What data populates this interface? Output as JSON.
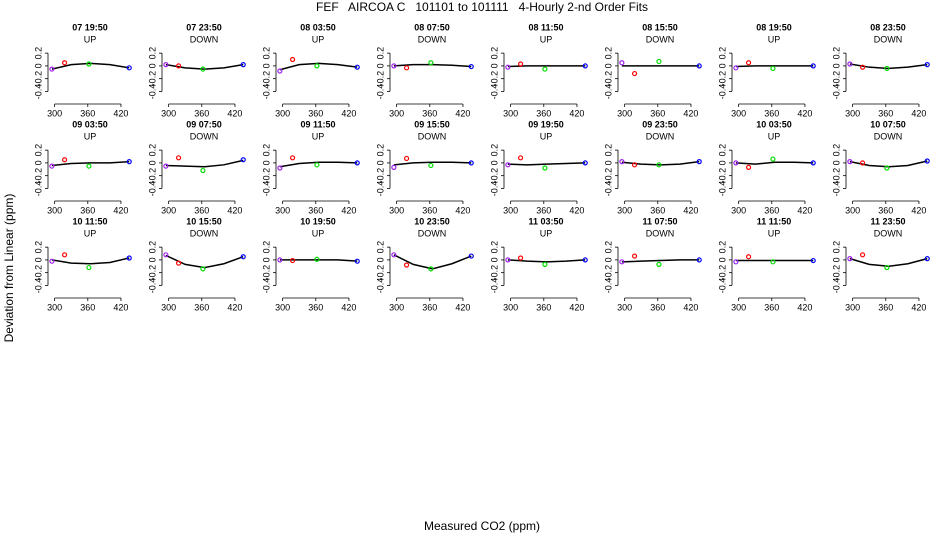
{
  "figure": {
    "title": "FEF   AIRCOA C   101101 to 101111   4-Hourly 2-nd Order Fits",
    "x_label": "Measured CO2 (ppm)",
    "y_label": "Deviation from Linear (ppm)"
  },
  "chart_data": [
    {
      "type": "scatter",
      "title": "07 19:50",
      "subtitle": "UP",
      "x": [
        295,
        318,
        362,
        435
      ],
      "values": [
        -0.05,
        0.05,
        0.03,
        -0.03
      ],
      "colors": [
        "#a020f0",
        "#ff0000",
        "#00dd00",
        "#0000ff"
      ],
      "fit": {
        "x": [
          295,
          330,
          365,
          400,
          435
        ],
        "values": [
          -0.05,
          0.02,
          0.04,
          0.02,
          -0.03
        ]
      },
      "xlim": [
        288,
        440
      ],
      "ylim": [
        -0.55,
        0.5
      ],
      "xticks": [
        300,
        360,
        420
      ],
      "yticks": [
        -0.4,
        -0.2,
        0,
        0.2
      ]
    },
    {
      "type": "scatter",
      "title": "07 23:50",
      "subtitle": "DOWN",
      "x": [
        295,
        318,
        362,
        435
      ],
      "values": [
        0.02,
        0.0,
        -0.05,
        0.02
      ],
      "colors": [
        "#a020f0",
        "#ff0000",
        "#00dd00",
        "#0000ff"
      ],
      "fit": {
        "x": [
          295,
          330,
          365,
          400,
          435
        ],
        "values": [
          0.02,
          -0.03,
          -0.05,
          -0.03,
          0.02
        ]
      },
      "xlim": [
        288,
        440
      ],
      "ylim": [
        -0.55,
        0.5
      ],
      "xticks": [
        300,
        360,
        420
      ],
      "yticks": [
        -0.4,
        -0.2,
        0,
        0.2
      ]
    },
    {
      "type": "scatter",
      "title": "08 03:50",
      "subtitle": "UP",
      "x": [
        295,
        318,
        362,
        435
      ],
      "values": [
        -0.08,
        0.1,
        0.0,
        -0.02
      ],
      "colors": [
        "#a020f0",
        "#ff0000",
        "#00dd00",
        "#0000ff"
      ],
      "fit": {
        "x": [
          295,
          330,
          365,
          400,
          435
        ],
        "values": [
          -0.06,
          0.02,
          0.04,
          0.02,
          -0.02
        ]
      },
      "xlim": [
        288,
        440
      ],
      "ylim": [
        -0.55,
        0.5
      ],
      "xticks": [
        300,
        360,
        420
      ],
      "yticks": [
        -0.4,
        -0.2,
        0,
        0.2
      ]
    },
    {
      "type": "scatter",
      "title": "08 07:50",
      "subtitle": "DOWN",
      "x": [
        295,
        318,
        362,
        435
      ],
      "values": [
        0.0,
        -0.03,
        0.05,
        -0.01
      ],
      "colors": [
        "#a020f0",
        "#ff0000",
        "#00dd00",
        "#0000ff"
      ],
      "fit": {
        "x": [
          295,
          330,
          365,
          400,
          435
        ],
        "values": [
          0,
          0.02,
          0.02,
          0.01,
          -0.01
        ]
      },
      "xlim": [
        288,
        440
      ],
      "ylim": [
        -0.55,
        0.5
      ],
      "xticks": [
        300,
        360,
        420
      ],
      "yticks": [
        -0.4,
        -0.2,
        0,
        0.2
      ]
    },
    {
      "type": "scatter",
      "title": "08 11:50",
      "subtitle": "UP",
      "x": [
        295,
        318,
        362,
        435
      ],
      "values": [
        -0.02,
        0.03,
        -0.05,
        0.0
      ],
      "colors": [
        "#a020f0",
        "#ff0000",
        "#00dd00",
        "#0000ff"
      ],
      "fit": {
        "x": [
          295,
          330,
          365,
          400,
          435
        ],
        "values": [
          -0.01,
          0,
          0,
          0,
          0
        ]
      },
      "xlim": [
        288,
        440
      ],
      "ylim": [
        -0.55,
        0.5
      ],
      "xticks": [
        300,
        360,
        420
      ],
      "yticks": [
        -0.4,
        -0.2,
        0,
        0.2
      ]
    },
    {
      "type": "scatter",
      "title": "08 15:50",
      "subtitle": "DOWN",
      "x": [
        295,
        318,
        362,
        435
      ],
      "values": [
        0.05,
        -0.12,
        0.07,
        0.0
      ],
      "colors": [
        "#a020f0",
        "#ff0000",
        "#00dd00",
        "#0000ff"
      ],
      "fit": {
        "x": [
          295,
          330,
          365,
          400,
          435
        ],
        "values": [
          0,
          0,
          0,
          0,
          0
        ]
      },
      "xlim": [
        288,
        440
      ],
      "ylim": [
        -0.55,
        0.5
      ],
      "xticks": [
        300,
        360,
        420
      ],
      "yticks": [
        -0.4,
        -0.2,
        0,
        0.2
      ]
    },
    {
      "type": "scatter",
      "title": "08 19:50",
      "subtitle": "UP",
      "x": [
        295,
        318,
        362,
        435
      ],
      "values": [
        -0.03,
        0.05,
        -0.04,
        0.0
      ],
      "colors": [
        "#a020f0",
        "#ff0000",
        "#00dd00",
        "#0000ff"
      ],
      "fit": {
        "x": [
          295,
          330,
          365,
          400,
          435
        ],
        "values": [
          -0.01,
          0,
          0,
          0,
          0
        ]
      },
      "xlim": [
        288,
        440
      ],
      "ylim": [
        -0.55,
        0.5
      ],
      "xticks": [
        300,
        360,
        420
      ],
      "yticks": [
        -0.4,
        -0.2,
        0,
        0.2
      ]
    },
    {
      "type": "scatter",
      "title": "08 23:50",
      "subtitle": "DOWN",
      "x": [
        295,
        318,
        362,
        435
      ],
      "values": [
        0.03,
        -0.02,
        -0.04,
        0.02
      ],
      "colors": [
        "#a020f0",
        "#ff0000",
        "#00dd00",
        "#0000ff"
      ],
      "fit": {
        "x": [
          295,
          330,
          365,
          400,
          435
        ],
        "values": [
          0.03,
          -0.02,
          -0.04,
          -0.02,
          0.02
        ]
      },
      "xlim": [
        288,
        440
      ],
      "ylim": [
        -0.55,
        0.5
      ],
      "xticks": [
        300,
        360,
        420
      ],
      "yticks": [
        -0.4,
        -0.2,
        0,
        0.2
      ]
    },
    {
      "type": "scatter",
      "title": "09 03:50",
      "subtitle": "UP",
      "x": [
        295,
        318,
        362,
        435
      ],
      "values": [
        -0.05,
        0.05,
        -0.05,
        0.02
      ],
      "colors": [
        "#a020f0",
        "#ff0000",
        "#00dd00",
        "#0000ff"
      ],
      "fit": {
        "x": [
          295,
          330,
          365,
          400,
          435
        ],
        "values": [
          -0.04,
          -0.01,
          0,
          0,
          0.02
        ]
      },
      "xlim": [
        288,
        440
      ],
      "ylim": [
        -0.55,
        0.5
      ],
      "xticks": [
        300,
        360,
        420
      ],
      "yticks": [
        -0.4,
        -0.2,
        0,
        0.2
      ]
    },
    {
      "type": "scatter",
      "title": "09 07:50",
      "subtitle": "DOWN",
      "x": [
        295,
        318,
        362,
        435
      ],
      "values": [
        -0.05,
        0.08,
        -0.12,
        0.05
      ],
      "colors": [
        "#a020f0",
        "#ff0000",
        "#00dd00",
        "#0000ff"
      ],
      "fit": {
        "x": [
          295,
          330,
          365,
          400,
          435
        ],
        "values": [
          -0.04,
          -0.05,
          -0.06,
          -0.03,
          0.04
        ]
      },
      "xlim": [
        288,
        440
      ],
      "ylim": [
        -0.55,
        0.5
      ],
      "xticks": [
        300,
        360,
        420
      ],
      "yticks": [
        -0.4,
        -0.2,
        0,
        0.2
      ]
    },
    {
      "type": "scatter",
      "title": "09 11:50",
      "subtitle": "UP",
      "x": [
        295,
        318,
        362,
        435
      ],
      "values": [
        -0.08,
        0.08,
        -0.03,
        0.0
      ],
      "colors": [
        "#a020f0",
        "#ff0000",
        "#00dd00",
        "#0000ff"
      ],
      "fit": {
        "x": [
          295,
          330,
          365,
          400,
          435
        ],
        "values": [
          -0.06,
          -0.01,
          0.01,
          0.01,
          0
        ]
      },
      "xlim": [
        288,
        440
      ],
      "ylim": [
        -0.55,
        0.5
      ],
      "xticks": [
        300,
        360,
        420
      ],
      "yticks": [
        -0.4,
        -0.2,
        0,
        0.2
      ]
    },
    {
      "type": "scatter",
      "title": "09 15:50",
      "subtitle": "DOWN",
      "x": [
        295,
        318,
        362,
        435
      ],
      "values": [
        -0.07,
        0.07,
        -0.04,
        0.0
      ],
      "colors": [
        "#a020f0",
        "#ff0000",
        "#00dd00",
        "#0000ff"
      ],
      "fit": {
        "x": [
          295,
          330,
          365,
          400,
          435
        ],
        "values": [
          -0.03,
          0,
          0.01,
          0.01,
          0
        ]
      },
      "xlim": [
        288,
        440
      ],
      "ylim": [
        -0.55,
        0.5
      ],
      "xticks": [
        300,
        360,
        420
      ],
      "yticks": [
        -0.4,
        -0.2,
        0,
        0.2
      ]
    },
    {
      "type": "scatter",
      "title": "09 19:50",
      "subtitle": "UP",
      "x": [
        295,
        318,
        362,
        435
      ],
      "values": [
        -0.03,
        0.08,
        -0.08,
        0.0
      ],
      "colors": [
        "#a020f0",
        "#ff0000",
        "#00dd00",
        "#0000ff"
      ],
      "fit": {
        "x": [
          295,
          330,
          365,
          400,
          435
        ],
        "values": [
          -0.02,
          -0.03,
          -0.02,
          -0.01,
          0
        ]
      },
      "xlim": [
        288,
        440
      ],
      "ylim": [
        -0.55,
        0.5
      ],
      "xticks": [
        300,
        360,
        420
      ],
      "yticks": [
        -0.4,
        -0.2,
        0,
        0.2
      ]
    },
    {
      "type": "scatter",
      "title": "09 23:50",
      "subtitle": "DOWN",
      "x": [
        295,
        318,
        362,
        435
      ],
      "values": [
        0.02,
        -0.03,
        -0.03,
        0.02
      ],
      "colors": [
        "#a020f0",
        "#ff0000",
        "#00dd00",
        "#0000ff"
      ],
      "fit": {
        "x": [
          295,
          330,
          365,
          400,
          435
        ],
        "values": [
          0.01,
          -0.02,
          -0.03,
          -0.02,
          0.02
        ]
      },
      "xlim": [
        288,
        440
      ],
      "ylim": [
        -0.55,
        0.5
      ],
      "xticks": [
        300,
        360,
        420
      ],
      "yticks": [
        -0.4,
        -0.2,
        0,
        0.2
      ]
    },
    {
      "type": "scatter",
      "title": "10 03:50",
      "subtitle": "UP",
      "x": [
        295,
        318,
        362,
        435
      ],
      "values": [
        0.0,
        -0.07,
        0.06,
        0.0
      ],
      "colors": [
        "#a020f0",
        "#ff0000",
        "#00dd00",
        "#0000ff"
      ],
      "fit": {
        "x": [
          295,
          330,
          365,
          400,
          435
        ],
        "values": [
          0,
          -0.02,
          0.01,
          0.01,
          0
        ]
      },
      "xlim": [
        288,
        440
      ],
      "ylim": [
        -0.55,
        0.5
      ],
      "xticks": [
        300,
        360,
        420
      ],
      "yticks": [
        -0.4,
        -0.2,
        0,
        0.2
      ]
    },
    {
      "type": "scatter",
      "title": "10 07:50",
      "subtitle": "DOWN",
      "x": [
        295,
        318,
        362,
        435
      ],
      "values": [
        0.02,
        0.0,
        -0.08,
        0.03
      ],
      "colors": [
        "#a020f0",
        "#ff0000",
        "#00dd00",
        "#0000ff"
      ],
      "fit": {
        "x": [
          295,
          330,
          365,
          400,
          435
        ],
        "values": [
          0.02,
          -0.04,
          -0.06,
          -0.04,
          0.03
        ]
      },
      "xlim": [
        288,
        440
      ],
      "ylim": [
        -0.55,
        0.5
      ],
      "xticks": [
        300,
        360,
        420
      ],
      "yticks": [
        -0.4,
        -0.2,
        0,
        0.2
      ]
    },
    {
      "type": "scatter",
      "title": "10 11:50",
      "subtitle": "UP",
      "x": [
        295,
        318,
        362,
        435
      ],
      "values": [
        -0.02,
        0.08,
        -0.12,
        0.03
      ],
      "colors": [
        "#a020f0",
        "#ff0000",
        "#00dd00",
        "#0000ff"
      ],
      "fit": {
        "x": [
          295,
          330,
          365,
          400,
          435
        ],
        "values": [
          0,
          -0.05,
          -0.06,
          -0.04,
          0.03
        ]
      },
      "xlim": [
        288,
        440
      ],
      "ylim": [
        -0.55,
        0.5
      ],
      "xticks": [
        300,
        360,
        420
      ],
      "yticks": [
        -0.4,
        -0.2,
        0,
        0.2
      ]
    },
    {
      "type": "scatter",
      "title": "10 15:50",
      "subtitle": "DOWN",
      "x": [
        295,
        318,
        362,
        435
      ],
      "values": [
        0.08,
        -0.05,
        -0.14,
        0.05
      ],
      "colors": [
        "#a020f0",
        "#ff0000",
        "#00dd00",
        "#0000ff"
      ],
      "fit": {
        "x": [
          295,
          330,
          365,
          400,
          435
        ],
        "values": [
          0.07,
          -0.07,
          -0.12,
          -0.06,
          0.05
        ]
      },
      "xlim": [
        288,
        440
      ],
      "ylim": [
        -0.55,
        0.5
      ],
      "xticks": [
        300,
        360,
        420
      ],
      "yticks": [
        -0.4,
        -0.2,
        0,
        0.2
      ]
    },
    {
      "type": "scatter",
      "title": "10 19:50",
      "subtitle": "UP",
      "x": [
        295,
        318,
        362,
        435
      ],
      "values": [
        0.0,
        -0.01,
        0.01,
        -0.02
      ],
      "colors": [
        "#a020f0",
        "#ff0000",
        "#00dd00",
        "#0000ff"
      ],
      "fit": {
        "x": [
          295,
          330,
          365,
          400,
          435
        ],
        "values": [
          0,
          0,
          0,
          0,
          -0.02
        ]
      },
      "xlim": [
        288,
        440
      ],
      "ylim": [
        -0.55,
        0.5
      ],
      "xticks": [
        300,
        360,
        420
      ],
      "yticks": [
        -0.4,
        -0.2,
        0,
        0.2
      ]
    },
    {
      "type": "scatter",
      "title": "10 23:50",
      "subtitle": "DOWN",
      "x": [
        295,
        318,
        362,
        435
      ],
      "values": [
        0.08,
        -0.08,
        -0.14,
        0.06
      ],
      "colors": [
        "#a020f0",
        "#ff0000",
        "#00dd00",
        "#0000ff"
      ],
      "fit": {
        "x": [
          295,
          330,
          365,
          400,
          435
        ],
        "values": [
          0.08,
          -0.07,
          -0.14,
          -0.06,
          0.06
        ]
      },
      "xlim": [
        288,
        440
      ],
      "ylim": [
        -0.55,
        0.5
      ],
      "xticks": [
        300,
        360,
        420
      ],
      "yticks": [
        -0.4,
        -0.2,
        0,
        0.2
      ]
    },
    {
      "type": "scatter",
      "title": "11 03:50",
      "subtitle": "UP",
      "x": [
        295,
        318,
        362,
        435
      ],
      "values": [
        0.0,
        0.03,
        -0.07,
        0.0
      ],
      "colors": [
        "#a020f0",
        "#ff0000",
        "#00dd00",
        "#0000ff"
      ],
      "fit": {
        "x": [
          295,
          330,
          365,
          400,
          435
        ],
        "values": [
          0,
          -0.02,
          -0.03,
          -0.02,
          0
        ]
      },
      "xlim": [
        288,
        440
      ],
      "ylim": [
        -0.55,
        0.5
      ],
      "xticks": [
        300,
        360,
        420
      ],
      "yticks": [
        -0.4,
        -0.2,
        0,
        0.2
      ]
    },
    {
      "type": "scatter",
      "title": "11 07:50",
      "subtitle": "DOWN",
      "x": [
        295,
        318,
        362,
        435
      ],
      "values": [
        -0.03,
        0.06,
        -0.07,
        0.0
      ],
      "colors": [
        "#a020f0",
        "#ff0000",
        "#00dd00",
        "#0000ff"
      ],
      "fit": {
        "x": [
          295,
          330,
          365,
          400,
          435
        ],
        "values": [
          -0.03,
          -0.02,
          -0.01,
          0,
          0
        ]
      },
      "xlim": [
        288,
        440
      ],
      "ylim": [
        -0.55,
        0.5
      ],
      "xticks": [
        300,
        360,
        420
      ],
      "yticks": [
        -0.4,
        -0.2,
        0,
        0.2
      ]
    },
    {
      "type": "scatter",
      "title": "11 11:50",
      "subtitle": "UP",
      "x": [
        295,
        318,
        362,
        435
      ],
      "values": [
        -0.03,
        0.05,
        -0.03,
        -0.01
      ],
      "colors": [
        "#a020f0",
        "#ff0000",
        "#00dd00",
        "#0000ff"
      ],
      "fit": {
        "x": [
          295,
          330,
          365,
          400,
          435
        ],
        "values": [
          -0.01,
          -0.01,
          -0.01,
          -0.01,
          -0.01
        ]
      },
      "xlim": [
        288,
        440
      ],
      "ylim": [
        -0.55,
        0.5
      ],
      "xticks": [
        300,
        360,
        420
      ],
      "yticks": [
        -0.4,
        -0.2,
        0,
        0.2
      ]
    },
    {
      "type": "scatter",
      "title": "11 23:50",
      "subtitle": "DOWN",
      "x": [
        295,
        318,
        362,
        435
      ],
      "values": [
        0.02,
        0.08,
        -0.12,
        0.02
      ],
      "colors": [
        "#a020f0",
        "#ff0000",
        "#00dd00",
        "#0000ff"
      ],
      "fit": {
        "x": [
          295,
          330,
          365,
          400,
          435
        ],
        "values": [
          0.02,
          -0.07,
          -0.1,
          -0.06,
          0.02
        ]
      },
      "xlim": [
        288,
        440
      ],
      "ylim": [
        -0.55,
        0.5
      ],
      "xticks": [
        300,
        360,
        420
      ],
      "yticks": [
        -0.4,
        -0.2,
        0,
        0.2
      ]
    }
  ]
}
